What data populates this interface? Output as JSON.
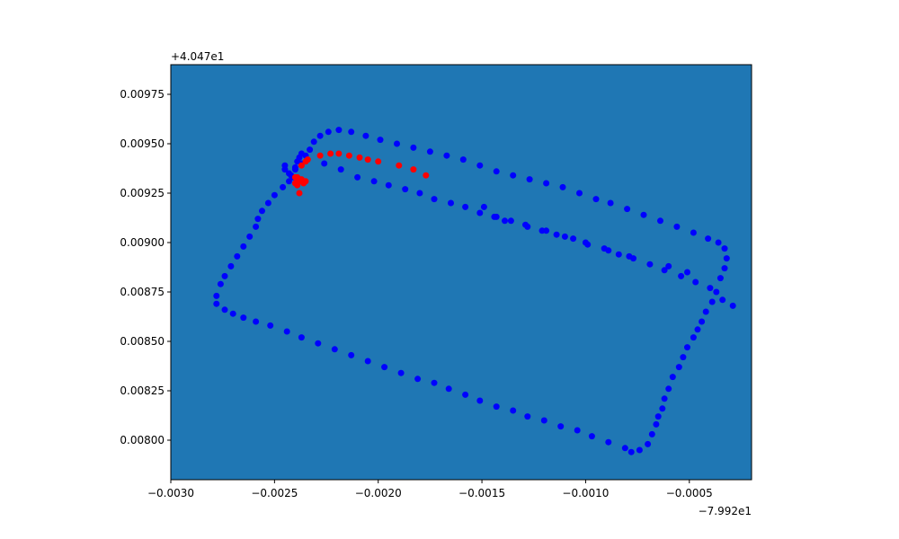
{
  "chart_data": {
    "type": "scatter",
    "title": "",
    "xlabel": "",
    "ylabel": "",
    "x_offset_label": "−7.992e1",
    "y_offset_label": "+4.047e1",
    "xlim": [
      -0.003,
      -0.0002
    ],
    "ylim": [
      0.0078,
      0.0099
    ],
    "x_ticks": [
      -0.003,
      -0.0025,
      -0.002,
      -0.0015,
      -0.001,
      -0.0005
    ],
    "x_tick_labels": [
      "−0.0030",
      "−0.0025",
      "−0.0020",
      "−0.0015",
      "−0.0010",
      "−0.0005"
    ],
    "y_ticks": [
      0.008,
      0.00825,
      0.0085,
      0.00875,
      0.009,
      0.00925,
      0.0095,
      0.00975
    ],
    "y_tick_labels": [
      "0.00800",
      "0.00825",
      "0.00850",
      "0.00875",
      "0.00900",
      "0.00925",
      "0.00950",
      "0.00975"
    ],
    "grid": false,
    "colors": {
      "plot_background": "#1f77b4",
      "blue_points": "#0000ff",
      "red_points": "#ff0000"
    },
    "series": [
      {
        "color": "#0000ff",
        "points": [
          [
            -0.00246,
            0.00928
          ],
          [
            -0.0025,
            0.00924
          ],
          [
            -0.00253,
            0.0092
          ],
          [
            -0.00256,
            0.00916
          ],
          [
            -0.00258,
            0.00912
          ],
          [
            -0.00259,
            0.00908
          ],
          [
            -0.00262,
            0.00903
          ],
          [
            -0.00265,
            0.00898
          ],
          [
            -0.00268,
            0.00893
          ],
          [
            -0.00271,
            0.00888
          ],
          [
            -0.00274,
            0.00883
          ],
          [
            -0.00276,
            0.00879
          ],
          [
            -0.00278,
            0.00873
          ],
          [
            -0.00278,
            0.00869
          ],
          [
            -0.00274,
            0.00866
          ],
          [
            -0.0027,
            0.00864
          ],
          [
            -0.00265,
            0.00862
          ],
          [
            -0.00259,
            0.0086
          ],
          [
            -0.00252,
            0.00858
          ],
          [
            -0.00244,
            0.00855
          ],
          [
            -0.00237,
            0.00852
          ],
          [
            -0.00229,
            0.00849
          ],
          [
            -0.00221,
            0.00846
          ],
          [
            -0.00213,
            0.00843
          ],
          [
            -0.00205,
            0.0084
          ],
          [
            -0.00197,
            0.00837
          ],
          [
            -0.00189,
            0.00834
          ],
          [
            -0.00181,
            0.00831
          ],
          [
            -0.00173,
            0.00829
          ],
          [
            -0.00166,
            0.00826
          ],
          [
            -0.00158,
            0.00823
          ],
          [
            -0.00151,
            0.0082
          ],
          [
            -0.00143,
            0.00817
          ],
          [
            -0.00135,
            0.00815
          ],
          [
            -0.00128,
            0.00812
          ],
          [
            -0.0012,
            0.0081
          ],
          [
            -0.00112,
            0.00807
          ],
          [
            -0.00104,
            0.00805
          ],
          [
            -0.00097,
            0.00802
          ],
          [
            -0.00089,
            0.00799
          ],
          [
            -0.00081,
            0.00796
          ],
          [
            -0.00078,
            0.00794
          ],
          [
            -0.00074,
            0.00795
          ],
          [
            -0.0007,
            0.00798
          ],
          [
            -0.00068,
            0.00803
          ],
          [
            -0.00066,
            0.00808
          ],
          [
            -0.00065,
            0.00812
          ],
          [
            -0.00063,
            0.00816
          ],
          [
            -0.00062,
            0.00821
          ],
          [
            -0.0006,
            0.00826
          ],
          [
            -0.00058,
            0.00832
          ],
          [
            -0.00055,
            0.00837
          ],
          [
            -0.00053,
            0.00842
          ],
          [
            -0.00051,
            0.00847
          ],
          [
            -0.00048,
            0.00852
          ],
          [
            -0.00046,
            0.00856
          ],
          [
            -0.00044,
            0.0086
          ],
          [
            -0.00042,
            0.00865
          ],
          [
            -0.00039,
            0.0087
          ],
          [
            -0.00037,
            0.00875
          ],
          [
            -0.00035,
            0.00882
          ],
          [
            -0.00033,
            0.00887
          ],
          [
            -0.00032,
            0.00892
          ],
          [
            -0.00033,
            0.00897
          ],
          [
            -0.00036,
            0.009
          ],
          [
            -0.00041,
            0.00902
          ],
          [
            -0.00048,
            0.00905
          ],
          [
            -0.00056,
            0.00908
          ],
          [
            -0.00064,
            0.00911
          ],
          [
            -0.00072,
            0.00914
          ],
          [
            -0.0008,
            0.00917
          ],
          [
            -0.00088,
            0.0092
          ],
          [
            -0.00095,
            0.00922
          ],
          [
            -0.00103,
            0.00925
          ],
          [
            -0.00111,
            0.00928
          ],
          [
            -0.00119,
            0.0093
          ],
          [
            -0.00127,
            0.00932
          ],
          [
            -0.00135,
            0.00934
          ],
          [
            -0.00143,
            0.00936
          ],
          [
            -0.00151,
            0.00939
          ],
          [
            -0.00159,
            0.00942
          ],
          [
            -0.00167,
            0.00944
          ],
          [
            -0.00175,
            0.00946
          ],
          [
            -0.00183,
            0.00948
          ],
          [
            -0.00191,
            0.0095
          ],
          [
            -0.00199,
            0.00952
          ],
          [
            -0.00206,
            0.00954
          ],
          [
            -0.00213,
            0.00956
          ],
          [
            -0.00219,
            0.00957
          ],
          [
            -0.00224,
            0.00956
          ],
          [
            -0.00228,
            0.00954
          ],
          [
            -0.00231,
            0.00951
          ],
          [
            -0.00233,
            0.00947
          ],
          [
            -0.00235,
            0.00944
          ],
          [
            -0.00237,
            0.0094
          ],
          [
            -0.0024,
            0.00937
          ],
          [
            -0.00242,
            0.00934
          ],
          [
            -0.00243,
            0.00931
          ],
          [
            -0.00245,
            0.00937
          ],
          [
            -0.00245,
            0.00939
          ],
          [
            -0.00243,
            0.00935
          ],
          [
            -0.00241,
            0.00933
          ],
          [
            -0.0024,
            0.00938
          ],
          [
            -0.00239,
            0.00941
          ],
          [
            -0.00238,
            0.00943
          ],
          [
            -0.00237,
            0.00945
          ],
          [
            -0.00226,
            0.0094
          ],
          [
            -0.00218,
            0.00937
          ],
          [
            -0.0021,
            0.00933
          ],
          [
            -0.00202,
            0.00931
          ],
          [
            -0.00195,
            0.00929
          ],
          [
            -0.00187,
            0.00927
          ],
          [
            -0.0018,
            0.00925
          ],
          [
            -0.00173,
            0.00922
          ],
          [
            -0.00165,
            0.0092
          ],
          [
            -0.00158,
            0.00918
          ],
          [
            -0.00151,
            0.00915
          ],
          [
            -0.00143,
            0.00913
          ],
          [
            -0.00136,
            0.00911
          ],
          [
            -0.00129,
            0.00909
          ],
          [
            -0.00121,
            0.00906
          ],
          [
            -0.00114,
            0.00904
          ],
          [
            -0.00106,
            0.00902
          ],
          [
            -0.00099,
            0.00899
          ],
          [
            -0.00091,
            0.00897
          ],
          [
            -0.00084,
            0.00894
          ],
          [
            -0.00077,
            0.00892
          ],
          [
            -0.00069,
            0.00889
          ],
          [
            -0.00062,
            0.00886
          ],
          [
            -0.00054,
            0.00883
          ],
          [
            -0.00047,
            0.0088
          ],
          [
            -0.0004,
            0.00877
          ],
          [
            -0.00034,
            0.00871
          ],
          [
            -0.00029,
            0.00868
          ],
          [
            -0.00149,
            0.00918
          ],
          [
            -0.00144,
            0.00913
          ],
          [
            -0.00139,
            0.00911
          ],
          [
            -0.00128,
            0.00908
          ],
          [
            -0.00119,
            0.00906
          ],
          [
            -0.0011,
            0.00903
          ],
          [
            -0.001,
            0.009
          ],
          [
            -0.00089,
            0.00896
          ],
          [
            -0.00079,
            0.00893
          ],
          [
            -0.0006,
            0.00888
          ],
          [
            -0.00051,
            0.00885
          ]
        ]
      },
      {
        "color": "#ff0000",
        "points": [
          [
            -0.00238,
            0.00925
          ],
          [
            -0.00239,
            0.00929
          ],
          [
            -0.00238,
            0.00931
          ],
          [
            -0.00236,
            0.0093
          ],
          [
            -0.00237,
            0.00932
          ],
          [
            -0.00235,
            0.00931
          ],
          [
            -0.0024,
            0.0093
          ],
          [
            -0.00239,
            0.00933
          ],
          [
            -0.0024,
            0.00933
          ],
          [
            -0.00237,
            0.00939
          ],
          [
            -0.00235,
            0.00941
          ],
          [
            -0.00234,
            0.00942
          ],
          [
            -0.00228,
            0.00944
          ],
          [
            -0.00223,
            0.00945
          ],
          [
            -0.00219,
            0.00945
          ],
          [
            -0.00214,
            0.00944
          ],
          [
            -0.00209,
            0.00943
          ],
          [
            -0.00205,
            0.00942
          ],
          [
            -0.002,
            0.00941
          ],
          [
            -0.0019,
            0.00939
          ],
          [
            -0.00183,
            0.00937
          ],
          [
            -0.00177,
            0.00934
          ]
        ]
      }
    ]
  }
}
